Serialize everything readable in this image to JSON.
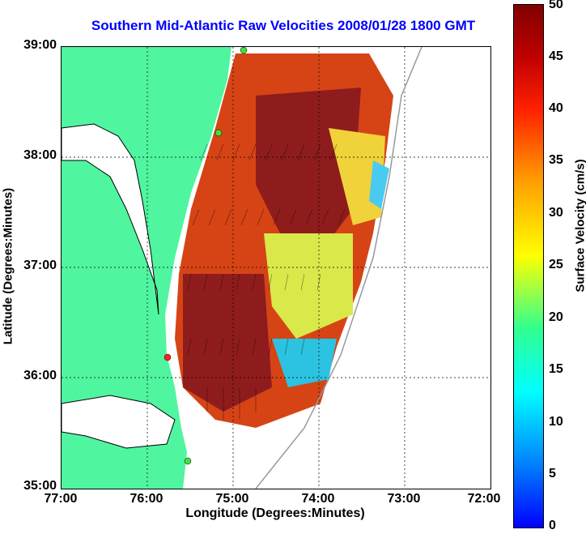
{
  "title": "Southern Mid-Atlantic Raw Velocities 2008/01/28 1800 GMT",
  "xlabel": "Longitude (Degrees:Minutes)",
  "ylabel": "Latitude (Degrees:Minutes)",
  "xticks": [
    "77:00",
    "76:00",
    "75:00",
    "74:00",
    "73:00",
    "72:00"
  ],
  "yticks": [
    "39:00",
    "38:00",
    "37:00",
    "36:00",
    "35:00"
  ],
  "colorbar": {
    "label": "Surface Velocity (cm/s)",
    "ticks": [
      "50",
      "45",
      "40",
      "35",
      "30",
      "25",
      "20",
      "15",
      "10",
      "5",
      "0"
    ],
    "colors": {
      "land": "#50f5a0",
      "low": "#0000ff",
      "mid": "#ffff00",
      "high": "#800000"
    }
  },
  "markers": [
    {
      "type": "site",
      "color": "#40e040"
    },
    {
      "type": "site",
      "color": "#40e040"
    },
    {
      "type": "site",
      "color": "#ff2020"
    },
    {
      "type": "site",
      "color": "#40e040"
    }
  ]
}
